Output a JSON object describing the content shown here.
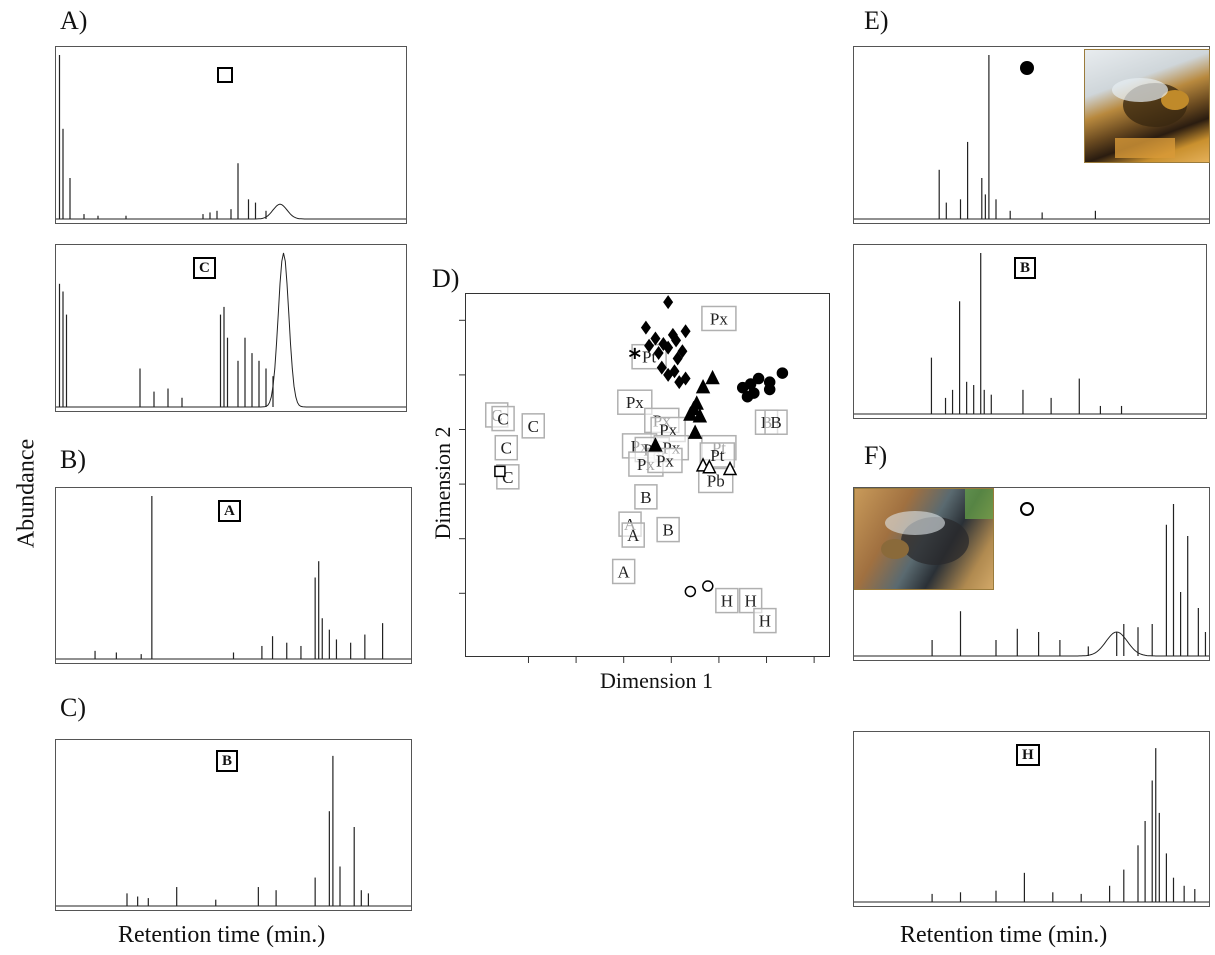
{
  "panel_labels": {
    "a": "A)",
    "b": "B)",
    "c": "C)",
    "d": "D)",
    "e": "E)",
    "f": "F)"
  },
  "axis_labels": {
    "y_left": "Abundance",
    "x_left": "Retention time (min.)",
    "x_right": "Retention time (min.)",
    "mds_x": "Dimension 1",
    "mds_y": "Dimension 2"
  },
  "chromatograms": [
    {
      "id": "a-top",
      "label": "",
      "marker": "open-square",
      "peaks": [
        [
          0.01,
          1.0
        ],
        [
          0.02,
          0.55
        ],
        [
          0.04,
          0.25
        ],
        [
          0.08,
          0.03
        ],
        [
          0.12,
          0.02
        ],
        [
          0.2,
          0.02
        ],
        [
          0.42,
          0.03
        ],
        [
          0.44,
          0.04
        ],
        [
          0.46,
          0.05
        ],
        [
          0.5,
          0.06
        ],
        [
          0.52,
          0.34
        ],
        [
          0.55,
          0.12
        ],
        [
          0.57,
          0.1
        ],
        [
          0.6,
          0.05
        ]
      ],
      "hump": {
        "center": 0.64,
        "height": 0.09,
        "width": 0.02
      }
    },
    {
      "id": "a-bottom",
      "label": "C",
      "marker": "",
      "peaks": [
        [
          0.01,
          0.8
        ],
        [
          0.02,
          0.75
        ],
        [
          0.03,
          0.6
        ],
        [
          0.24,
          0.25
        ],
        [
          0.28,
          0.1
        ],
        [
          0.32,
          0.12
        ],
        [
          0.36,
          0.06
        ],
        [
          0.47,
          0.6
        ],
        [
          0.48,
          0.65
        ],
        [
          0.49,
          0.45
        ],
        [
          0.52,
          0.3
        ],
        [
          0.54,
          0.45
        ],
        [
          0.56,
          0.35
        ],
        [
          0.58,
          0.3
        ],
        [
          0.6,
          0.25
        ],
        [
          0.62,
          0.2
        ]
      ],
      "hump": {
        "center": 0.65,
        "height": 1.0,
        "width": 0.015
      }
    },
    {
      "id": "b",
      "label": "A",
      "marker": "",
      "peaks": [
        [
          0.11,
          0.05
        ],
        [
          0.17,
          0.04
        ],
        [
          0.24,
          0.03
        ],
        [
          0.27,
          1.0
        ],
        [
          0.5,
          0.04
        ],
        [
          0.58,
          0.08
        ],
        [
          0.61,
          0.14
        ],
        [
          0.65,
          0.1
        ],
        [
          0.69,
          0.08
        ],
        [
          0.73,
          0.5
        ],
        [
          0.74,
          0.6
        ],
        [
          0.75,
          0.25
        ],
        [
          0.77,
          0.18
        ],
        [
          0.79,
          0.12
        ],
        [
          0.83,
          0.1
        ],
        [
          0.87,
          0.15
        ],
        [
          0.92,
          0.22
        ]
      ],
      "hump": {
        "center": 0.0,
        "height": 0.0,
        "width": 0.01
      }
    },
    {
      "id": "c",
      "label": "B",
      "marker": "",
      "peaks": [
        [
          0.2,
          0.08
        ],
        [
          0.23,
          0.06
        ],
        [
          0.26,
          0.05
        ],
        [
          0.34,
          0.12
        ],
        [
          0.45,
          0.04
        ],
        [
          0.57,
          0.12
        ],
        [
          0.62,
          0.1
        ],
        [
          0.73,
          0.18
        ],
        [
          0.77,
          0.6
        ],
        [
          0.78,
          0.95
        ],
        [
          0.8,
          0.25
        ],
        [
          0.84,
          0.5
        ],
        [
          0.86,
          0.1
        ],
        [
          0.88,
          0.08
        ]
      ],
      "hump": {
        "center": 0.0,
        "height": 0.0,
        "width": 0.01
      }
    },
    {
      "id": "e-top",
      "label": "",
      "marker": "filled-circle",
      "peaks": [
        [
          0.24,
          0.3
        ],
        [
          0.26,
          0.1
        ],
        [
          0.3,
          0.12
        ],
        [
          0.32,
          0.47
        ],
        [
          0.36,
          0.25
        ],
        [
          0.37,
          0.15
        ],
        [
          0.38,
          1.0
        ],
        [
          0.4,
          0.12
        ],
        [
          0.44,
          0.05
        ],
        [
          0.53,
          0.04
        ],
        [
          0.68,
          0.05
        ]
      ],
      "hump": {
        "center": 0.0,
        "height": 0.0,
        "width": 0.01
      }
    },
    {
      "id": "e-bottom",
      "label": "B",
      "marker": "",
      "peaks": [
        [
          0.22,
          0.35
        ],
        [
          0.26,
          0.1
        ],
        [
          0.28,
          0.15
        ],
        [
          0.3,
          0.7
        ],
        [
          0.32,
          0.2
        ],
        [
          0.34,
          0.18
        ],
        [
          0.36,
          1.0
        ],
        [
          0.37,
          0.15
        ],
        [
          0.39,
          0.12
        ],
        [
          0.48,
          0.15
        ],
        [
          0.56,
          0.1
        ],
        [
          0.64,
          0.22
        ],
        [
          0.7,
          0.05
        ],
        [
          0.76,
          0.05
        ]
      ],
      "hump": {
        "center": 0.0,
        "height": 0.0,
        "width": 0.01
      }
    },
    {
      "id": "f-top",
      "label": "",
      "marker": "open-circle",
      "peaks": [
        [
          0.22,
          0.1
        ],
        [
          0.3,
          0.28
        ],
        [
          0.4,
          0.1
        ],
        [
          0.46,
          0.17
        ],
        [
          0.52,
          0.15
        ],
        [
          0.58,
          0.1
        ],
        [
          0.66,
          0.06
        ],
        [
          0.74,
          0.15
        ],
        [
          0.76,
          0.2
        ],
        [
          0.8,
          0.18
        ],
        [
          0.84,
          0.2
        ],
        [
          0.88,
          0.82
        ],
        [
          0.9,
          0.95
        ],
        [
          0.92,
          0.4
        ],
        [
          0.94,
          0.75
        ],
        [
          0.97,
          0.3
        ],
        [
          0.99,
          0.15
        ]
      ],
      "hump": {
        "center": 0.74,
        "height": 0.15,
        "width": 0.03
      }
    },
    {
      "id": "f-bottom",
      "label": "H",
      "marker": "",
      "peaks": [
        [
          0.22,
          0.05
        ],
        [
          0.3,
          0.06
        ],
        [
          0.4,
          0.07
        ],
        [
          0.48,
          0.18
        ],
        [
          0.56,
          0.06
        ],
        [
          0.64,
          0.05
        ],
        [
          0.72,
          0.1
        ],
        [
          0.76,
          0.2
        ],
        [
          0.8,
          0.35
        ],
        [
          0.82,
          0.5
        ],
        [
          0.84,
          0.75
        ],
        [
          0.85,
          0.95
        ],
        [
          0.86,
          0.55
        ],
        [
          0.88,
          0.3
        ],
        [
          0.9,
          0.15
        ],
        [
          0.93,
          0.1
        ],
        [
          0.96,
          0.08
        ]
      ],
      "hump": {
        "center": 0.0,
        "height": 0.0,
        "width": 0.01
      }
    }
  ],
  "chart_data": {
    "type": "scatter",
    "title": "",
    "xlabel": "Dimension 1",
    "ylabel": "Dimension 2",
    "xlim": [
      -1.0,
      1.0
    ],
    "ylim": [
      -1.0,
      1.0
    ],
    "grid": false,
    "point_groups": [
      {
        "marker": "asterisk",
        "points": [
          [
            -0.23,
            0.7
          ]
        ]
      },
      {
        "marker": "open-square",
        "points": [
          [
            -1.08,
            0.07
          ]
        ]
      },
      {
        "marker": "filled-diamond",
        "points": [
          [
            -0.02,
            1.0
          ],
          [
            -0.16,
            0.86
          ],
          [
            -0.14,
            0.76
          ],
          [
            -0.1,
            0.8
          ],
          [
            -0.08,
            0.72
          ],
          [
            -0.05,
            0.77
          ],
          [
            -0.02,
            0.75
          ],
          [
            0.01,
            0.82
          ],
          [
            0.03,
            0.79
          ],
          [
            -0.06,
            0.64
          ],
          [
            -0.02,
            0.6
          ],
          [
            0.02,
            0.62
          ],
          [
            0.04,
            0.69
          ],
          [
            0.07,
            0.73
          ],
          [
            0.09,
            0.84
          ],
          [
            0.05,
            0.56
          ],
          [
            0.09,
            0.58
          ]
        ]
      },
      {
        "marker": "filled-triangle",
        "points": [
          [
            0.12,
            0.38
          ],
          [
            0.14,
            0.41
          ],
          [
            0.16,
            0.44
          ],
          [
            0.2,
            0.53
          ],
          [
            0.18,
            0.37
          ],
          [
            0.15,
            0.28
          ],
          [
            -0.1,
            0.21
          ],
          [
            0.26,
            0.58
          ]
        ]
      },
      {
        "marker": "filled-circle",
        "points": [
          [
            0.45,
            0.53
          ],
          [
            0.5,
            0.55
          ],
          [
            0.55,
            0.58
          ],
          [
            0.62,
            0.56
          ],
          [
            0.62,
            0.52
          ],
          [
            0.48,
            0.48
          ],
          [
            0.52,
            0.5
          ],
          [
            0.7,
            0.61
          ]
        ]
      },
      {
        "marker": "open-triangle",
        "points": [
          [
            0.2,
            0.1
          ],
          [
            0.24,
            0.09
          ],
          [
            0.37,
            0.08
          ]
        ]
      },
      {
        "marker": "open-circle",
        "points": [
          [
            0.12,
            -0.59
          ],
          [
            0.23,
            -0.56
          ]
        ]
      }
    ],
    "text_labels": [
      {
        "text": "Px",
        "x": 0.3,
        "y": 0.91
      },
      {
        "text": "Pt",
        "x": -0.14,
        "y": 0.7
      },
      {
        "text": "Px",
        "x": -0.23,
        "y": 0.45
      },
      {
        "text": "Px",
        "x": -0.06,
        "y": 0.35
      },
      {
        "text": "Px",
        "x": -0.02,
        "y": 0.3
      },
      {
        "text": "Px",
        "x": -0.2,
        "y": 0.21
      },
      {
        "text": "Px",
        "x": -0.12,
        "y": 0.19
      },
      {
        "text": "Px",
        "x": 0.0,
        "y": 0.2
      },
      {
        "text": "Px",
        "x": -0.16,
        "y": 0.11
      },
      {
        "text": "Px",
        "x": -0.04,
        "y": 0.13
      },
      {
        "text": "Pt",
        "x": 0.3,
        "y": 0.2
      },
      {
        "text": "Pt",
        "x": 0.29,
        "y": 0.16
      },
      {
        "text": "Pb",
        "x": 0.28,
        "y": 0.02
      },
      {
        "text": "B",
        "x": -0.16,
        "y": -0.07
      },
      {
        "text": "B",
        "x": -0.02,
        "y": -0.25
      },
      {
        "text": "B",
        "x": 0.6,
        "y": 0.34
      },
      {
        "text": "B",
        "x": 0.66,
        "y": 0.34
      },
      {
        "text": "A",
        "x": -0.26,
        "y": -0.22
      },
      {
        "text": "A",
        "x": -0.24,
        "y": -0.28
      },
      {
        "text": "A",
        "x": -0.3,
        "y": -0.48
      },
      {
        "text": "H",
        "x": 0.35,
        "y": -0.64
      },
      {
        "text": "H",
        "x": 0.5,
        "y": -0.64
      },
      {
        "text": "H",
        "x": 0.59,
        "y": -0.75
      },
      {
        "text": "C",
        "x": -1.1,
        "y": 0.38
      },
      {
        "text": "C",
        "x": -1.06,
        "y": 0.36
      },
      {
        "text": "C",
        "x": -0.87,
        "y": 0.32
      },
      {
        "text": "C",
        "x": -1.04,
        "y": 0.2
      },
      {
        "text": "C",
        "x": -1.03,
        "y": 0.04
      }
    ]
  }
}
